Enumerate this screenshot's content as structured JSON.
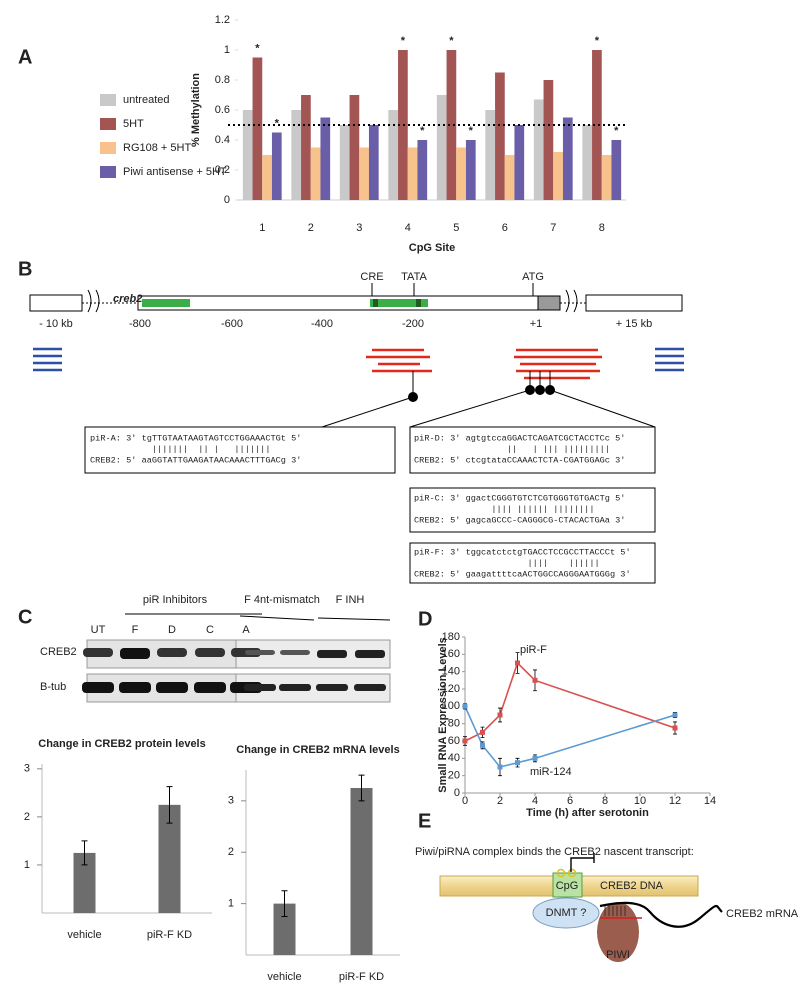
{
  "panel_labels": [
    "A",
    "B",
    "C",
    "D",
    "E"
  ],
  "chart_data": [
    {
      "type": "bar",
      "xlabel": "CpG Site",
      "ylabel": "% Methylation",
      "categories": [
        "1",
        "2",
        "3",
        "4",
        "5",
        "6",
        "7",
        "8"
      ],
      "series": [
        {
          "name": "untreated",
          "color": "#c9c9c9",
          "values": [
            0.6,
            0.6,
            0.5,
            0.6,
            0.7,
            0.6,
            0.67,
            0.5
          ]
        },
        {
          "name": "5HT",
          "color": "#a25553",
          "values": [
            0.95,
            0.7,
            0.7,
            1.0,
            1.0,
            0.85,
            0.8,
            1.0
          ]
        },
        {
          "name": "RG108 + 5HT",
          "color": "#f8c28c",
          "values": [
            0.3,
            0.35,
            0.35,
            0.35,
            0.35,
            0.3,
            0.32,
            0.3
          ]
        },
        {
          "name": "Piwi antisense + 5HT",
          "color": "#6b5ea8",
          "values": [
            0.45,
            0.55,
            0.5,
            0.4,
            0.4,
            0.5,
            0.55,
            0.4
          ]
        }
      ],
      "annotations": [
        {
          "text": "*",
          "series": 1,
          "category": 0
        },
        {
          "text": "*",
          "series": 3,
          "category": 0
        },
        {
          "text": "*",
          "series": 1,
          "category": 3
        },
        {
          "text": "*",
          "series": 3,
          "category": 3
        },
        {
          "text": "*",
          "series": 1,
          "category": 4
        },
        {
          "text": "*",
          "series": 3,
          "category": 4
        },
        {
          "text": "*",
          "series": 1,
          "category": 7
        },
        {
          "text": "*",
          "series": 3,
          "category": 7
        }
      ],
      "reference_line": 0.5,
      "ylim": [
        0,
        1.2
      ],
      "yticks": [
        0,
        0.2,
        0.4,
        0.6,
        0.8,
        1,
        1.2
      ]
    },
    {
      "type": "bar",
      "title": "Change in CREB2 protein levels",
      "categories": [
        "vehicle",
        "piR-F KD"
      ],
      "values": [
        1.25,
        2.25
      ],
      "errors": [
        0.25,
        0.38
      ],
      "color": "#6d6d6d",
      "ylim": [
        0,
        3.1
      ],
      "yticks": [
        1,
        2,
        3
      ]
    },
    {
      "type": "bar",
      "title": "Change in CREB2 mRNA levels",
      "categories": [
        "vehicle",
        "piR-F KD"
      ],
      "values": [
        1.0,
        3.25
      ],
      "errors": [
        0.25,
        0.25
      ],
      "color": "#6d6d6d",
      "ylim": [
        0,
        3.6
      ],
      "yticks": [
        1,
        2,
        3
      ]
    },
    {
      "type": "line",
      "xlabel": "Time (h) after serotonin",
      "ylabel": "Small RNA Expression Levels",
      "series": [
        {
          "name": "piR-F",
          "color": "#d9514e",
          "x": [
            0,
            1,
            2,
            3,
            4,
            12
          ],
          "values": [
            60,
            70,
            90,
            150,
            130,
            75
          ],
          "errors": [
            5,
            6,
            8,
            12,
            12,
            7
          ]
        },
        {
          "name": "miR-124",
          "color": "#5b9bd5",
          "x": [
            0,
            1,
            2,
            3,
            4,
            12
          ],
          "values": [
            100,
            55,
            30,
            35,
            40,
            90
          ],
          "errors": [
            3,
            4,
            10,
            5,
            4,
            3
          ]
        }
      ],
      "xlim": [
        0,
        14
      ],
      "xticks": [
        0,
        2,
        4,
        6,
        8,
        10,
        12,
        14
      ],
      "ylim": [
        0,
        180
      ],
      "yticks": [
        0,
        20,
        40,
        60,
        80,
        100,
        120,
        140,
        160,
        180
      ]
    }
  ],
  "diagram_b": {
    "gene": "creb2",
    "left_label": "- 10 kb",
    "right_label": "+ 15 kb",
    "positions": [
      "-800",
      "-600",
      "-400",
      "-200",
      "+1"
    ],
    "elements": [
      "CRE",
      "TATA",
      "ATG"
    ],
    "alignments": [
      [
        "piR-A: 3' tgTTGTAATAAGTAGTCCTGGAAACTGt 5'",
        "            |||||||  || |   |||||||",
        "CREB2: 5' aaGGTATTGAAGATAACAAACTTTGACg 3'"
      ],
      [
        "piR-D: 3' agtgtccaGGACTCAGATCGCTACCTCc 5'",
        "                  ||   | ||| |||||||||",
        "CREB2: 5' ctcgtataCCAAACTCTA-CGATGGAGc 3'"
      ],
      [
        "piR-C: 3' ggactCGGGTGTCTCGTGGGTGTGACTg 5'",
        "               |||| |||||| ||||||||",
        "CREB2: 5' gagcaGCCC-CAGGGCG-CTACACTGAa 3'"
      ],
      [
        "piR-F: 3' tggcatctctgTGACCTCCGCCTTACCCt 5'",
        "                      ||||    ||||||",
        "CREB2: 5' gaagattttcaACTGGCCAGGGAATGGGg 3'"
      ]
    ]
  },
  "blot_c": {
    "group_label": "piR Inhibitors",
    "lanes": [
      "UT",
      "F",
      "D",
      "C",
      "A"
    ],
    "group2": [
      "F 4nt-mismatch",
      "F INH"
    ],
    "rows": [
      "CREB2",
      "B-tub"
    ]
  },
  "schematic_e": {
    "caption": "Piwi/piRNA complex binds the CREB2 nascent transcript:",
    "cpg": "CpG",
    "dna": "CREB2 DNA",
    "dnmt": "DNMT ?",
    "piwi": "PIWI",
    "mrna": "CREB2 mRNA"
  }
}
